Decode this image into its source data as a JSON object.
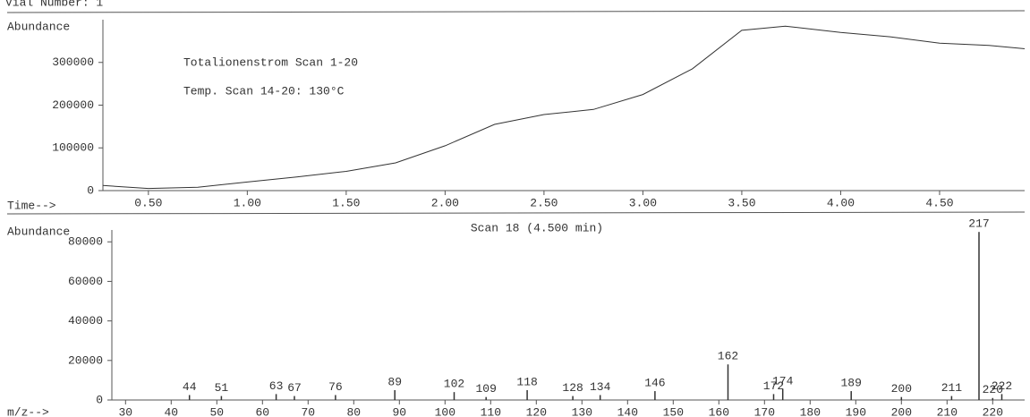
{
  "chart_data": [
    {
      "type": "line",
      "header": "Vial Number: 1",
      "ylabel": "Abundance",
      "xlabel": "Time-->",
      "annotations": [
        "Totalionenstrom Scan 1-20",
        "Temp. Scan 14-20: 130°C"
      ],
      "x": [
        0.27,
        0.5,
        0.75,
        1.0,
        1.25,
        1.5,
        1.75,
        2.0,
        2.25,
        2.5,
        2.75,
        3.0,
        3.25,
        3.5,
        3.72,
        4.0,
        4.25,
        4.5,
        4.75,
        4.93
      ],
      "values": [
        12000,
        5000,
        8000,
        20000,
        32000,
        45000,
        65000,
        105000,
        155000,
        178000,
        190000,
        225000,
        285000,
        375000,
        385000,
        370000,
        360000,
        345000,
        340000,
        332000
      ],
      "color": "#333333",
      "xlim": [
        0.27,
        4.93
      ],
      "xticks": [
        {
          "value": 0.5,
          "label": "0.50"
        },
        {
          "value": 1,
          "label": "1.00"
        },
        {
          "value": 1.5,
          "label": "1.50"
        },
        {
          "value": 2,
          "label": "2.00"
        },
        {
          "value": 2.5,
          "label": "2.50"
        },
        {
          "value": 3,
          "label": "3.00"
        },
        {
          "value": 3.5,
          "label": "3.50"
        },
        {
          "value": 4,
          "label": "4.00"
        },
        {
          "value": 4.5,
          "label": "4.50"
        }
      ],
      "ylim": [
        0,
        400000
      ],
      "yticks": [
        0,
        100000,
        200000,
        300000
      ]
    },
    {
      "type": "bar",
      "title": "Scan 18 (4.500 min)",
      "ylabel": "Abundance",
      "xlabel": "m/z-->",
      "x": [
        44,
        51,
        63,
        67,
        76,
        89,
        102,
        109,
        118,
        128,
        134,
        146,
        162,
        172,
        174,
        189,
        200,
        211,
        217,
        220,
        222
      ],
      "values": [
        2500,
        2000,
        3000,
        2000,
        2500,
        5000,
        4000,
        1500,
        5000,
        2000,
        2500,
        4500,
        18000,
        3000,
        5500,
        4500,
        1500,
        2000,
        85000,
        1000,
        3000
      ],
      "color": "#333333",
      "xlim": [
        27,
        227
      ],
      "xticks": [
        30,
        40,
        50,
        60,
        70,
        80,
        90,
        100,
        110,
        120,
        130,
        140,
        150,
        160,
        170,
        180,
        190,
        200,
        210,
        220
      ],
      "ylim": [
        0,
        86000
      ],
      "yticks": [
        0,
        20000,
        40000,
        60000,
        80000
      ]
    }
  ]
}
